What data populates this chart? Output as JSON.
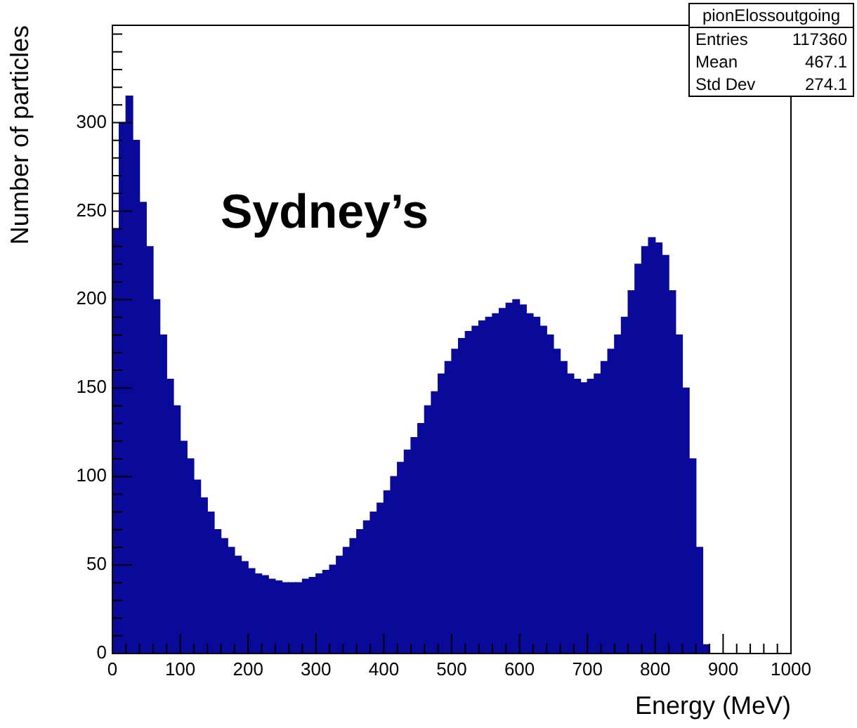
{
  "chart_data": {
    "type": "histogram",
    "xlabel": "Energy (MeV)",
    "ylabel": "Number of particles",
    "color": "#0a0a9a",
    "annotations": [
      "Sydney’s",
      "pionElossoutgoing",
      "Entries",
      "117360",
      "Mean",
      "467.1",
      "Std Dev",
      "274.1"
    ],
    "bins": [
      0,
      10,
      20,
      30,
      40,
      50,
      60,
      70,
      80,
      90,
      100,
      110,
      120,
      130,
      140,
      150,
      160,
      170,
      180,
      190,
      200,
      210,
      220,
      230,
      240,
      250,
      260,
      270,
      280,
      290,
      300,
      310,
      320,
      330,
      340,
      350,
      360,
      370,
      380,
      390,
      400,
      410,
      420,
      430,
      440,
      450,
      460,
      470,
      480,
      490,
      500,
      510,
      520,
      530,
      540,
      550,
      560,
      570,
      580,
      590,
      600,
      610,
      620,
      630,
      640,
      650,
      660,
      670,
      680,
      690,
      700,
      710,
      720,
      730,
      740,
      750,
      760,
      770,
      780,
      790,
      800,
      810,
      820,
      830,
      840,
      850,
      860,
      870,
      880
    ],
    "values": [
      240,
      300,
      315,
      290,
      255,
      230,
      200,
      180,
      155,
      140,
      120,
      110,
      98,
      88,
      80,
      70,
      65,
      60,
      55,
      52,
      48,
      45,
      44,
      42,
      41,
      40,
      40,
      40,
      42,
      43,
      45,
      47,
      50,
      55,
      60,
      65,
      70,
      75,
      80,
      85,
      92,
      100,
      108,
      115,
      122,
      130,
      140,
      148,
      158,
      165,
      172,
      178,
      182,
      185,
      188,
      190,
      192,
      195,
      198,
      200,
      197,
      192,
      190,
      185,
      180,
      172,
      165,
      158,
      155,
      153,
      155,
      158,
      165,
      172,
      180,
      190,
      205,
      220,
      230,
      235,
      232,
      225,
      205,
      180,
      150,
      110,
      60,
      5
    ],
    "xlim": [
      0,
      1000
    ],
    "ylim": [
      0,
      355
    ],
    "xticks": [
      0,
      {
        "value": 20,
        "label": null
      },
      {
        "value": 40,
        "label": null
      },
      {
        "value": 60,
        "label": null
      },
      {
        "value": 80,
        "label": null
      },
      100,
      {
        "value": 120,
        "label": null
      },
      {
        "value": 140,
        "label": null
      },
      {
        "value": 160,
        "label": null
      },
      {
        "value": 180,
        "label": null
      },
      200,
      {
        "value": 220,
        "label": null
      },
      {
        "value": 240,
        "label": null
      },
      {
        "value": 260,
        "label": null
      },
      {
        "value": 280,
        "label": null
      },
      300,
      {
        "value": 320,
        "label": null
      },
      {
        "value": 340,
        "label": null
      },
      {
        "value": 360,
        "label": null
      },
      {
        "value": 380,
        "label": null
      },
      400,
      {
        "value": 420,
        "label": null
      },
      {
        "value": 440,
        "label": null
      },
      {
        "value": 460,
        "label": null
      },
      {
        "value": 480,
        "label": null
      },
      500,
      {
        "value": 520,
        "label": null
      },
      {
        "value": 540,
        "label": null
      },
      {
        "value": 560,
        "label": null
      },
      {
        "value": 580,
        "label": null
      },
      600,
      {
        "value": 620,
        "label": null
      },
      {
        "value": 640,
        "label": null
      },
      {
        "value": 660,
        "label": null
      },
      {
        "value": 680,
        "label": null
      },
      700,
      {
        "value": 720,
        "label": null
      },
      {
        "value": 740,
        "label": null
      },
      {
        "value": 760,
        "label": null
      },
      {
        "value": 780,
        "label": null
      },
      800,
      {
        "value": 820,
        "label": null
      },
      {
        "value": 840,
        "label": null
      },
      {
        "value": 860,
        "label": null
      },
      {
        "value": 880,
        "label": null
      },
      900,
      {
        "value": 920,
        "label": null
      },
      {
        "value": 940,
        "label": null
      },
      {
        "value": 960,
        "label": null
      },
      {
        "value": 980,
        "label": null
      },
      1000
    ],
    "yticks": [
      0,
      {
        "value": 10,
        "label": null
      },
      {
        "value": 20,
        "label": null
      },
      {
        "value": 30,
        "label": null
      },
      {
        "value": 40,
        "label": null
      },
      50,
      {
        "value": 60,
        "label": null
      },
      {
        "value": 70,
        "label": null
      },
      {
        "value": 80,
        "label": null
      },
      {
        "value": 90,
        "label": null
      },
      100,
      {
        "value": 110,
        "label": null
      },
      {
        "value": 120,
        "label": null
      },
      {
        "value": 130,
        "label": null
      },
      {
        "value": 140,
        "label": null
      },
      150,
      {
        "value": 160,
        "label": null
      },
      {
        "value": 170,
        "label": null
      },
      {
        "value": 180,
        "label": null
      },
      {
        "value": 190,
        "label": null
      },
      200,
      {
        "value": 210,
        "label": null
      },
      {
        "value": 220,
        "label": null
      },
      {
        "value": 230,
        "label": null
      },
      {
        "value": 240,
        "label": null
      },
      250,
      {
        "value": 260,
        "label": null
      },
      {
        "value": 270,
        "label": null
      },
      {
        "value": 280,
        "label": null
      },
      {
        "value": 290,
        "label": null
      },
      300,
      {
        "value": 310,
        "label": null
      },
      {
        "value": 320,
        "label": null
      },
      {
        "value": 330,
        "label": null
      },
      {
        "value": 340,
        "label": null
      },
      {
        "value": 350,
        "label": null
      }
    ],
    "legend": false
  }
}
